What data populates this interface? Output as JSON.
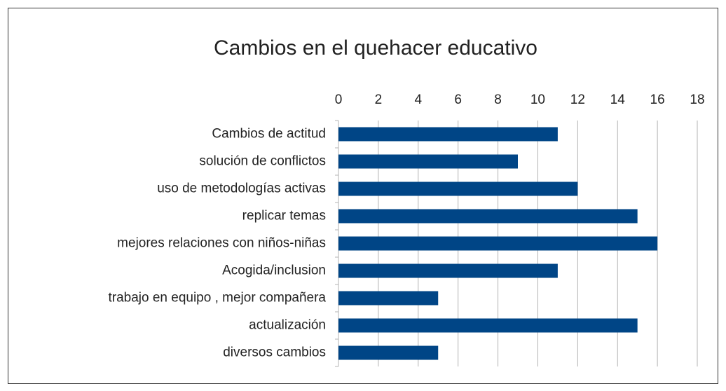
{
  "chart_data": {
    "type": "bar",
    "orientation": "horizontal",
    "title": "Cambios en el quehacer educativo",
    "categories": [
      "Cambios de actitud",
      "solución de conflictos",
      "uso de metodologías activas",
      "replicar temas",
      "mejores relaciones con niños-niñas",
      "Acogida/inclusion",
      "trabajo en equipo , mejor compañera",
      "actualización",
      "diversos cambios"
    ],
    "values": [
      11,
      9,
      12,
      15,
      16,
      11,
      5,
      15,
      5
    ],
    "color": "#004586",
    "xlim": [
      0,
      18
    ],
    "xticks": [
      0,
      2,
      4,
      6,
      8,
      10,
      12,
      14,
      16,
      18
    ],
    "grid": true
  }
}
